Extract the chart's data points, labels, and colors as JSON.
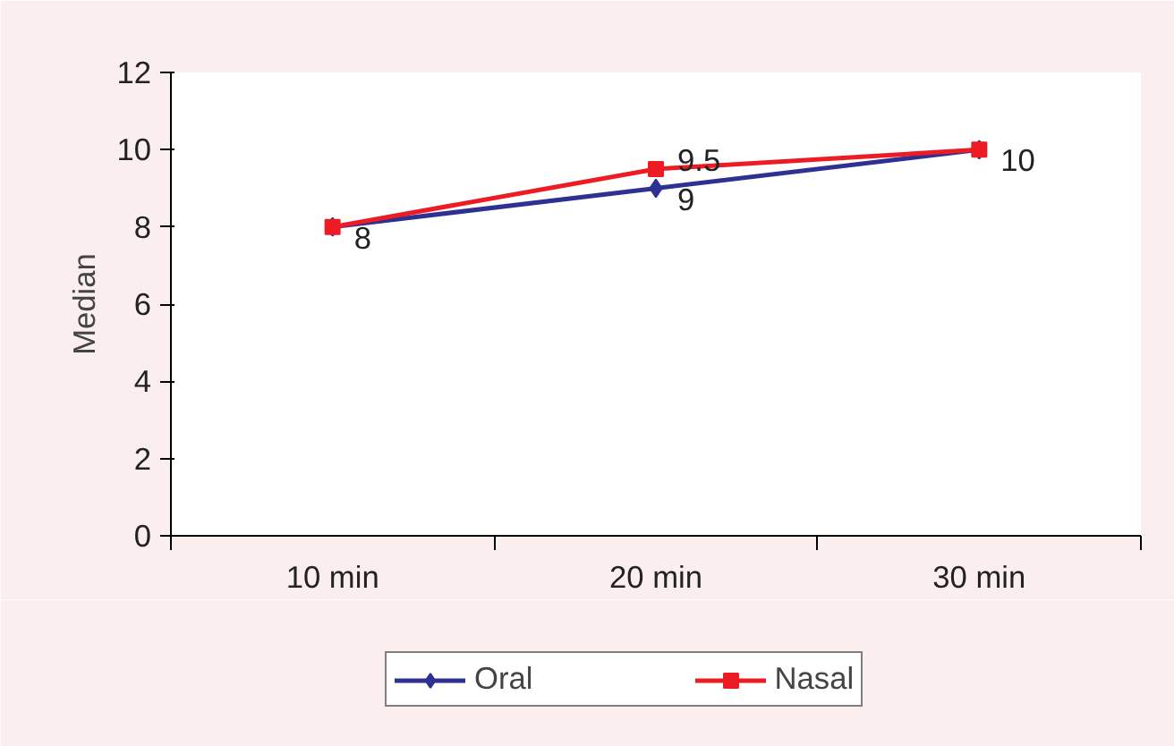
{
  "chart_data": {
    "type": "line",
    "ylabel": "Median",
    "categories": [
      "10 min",
      "20 min",
      "30 min"
    ],
    "series": [
      {
        "name": "Oral",
        "color": "#2e3192",
        "values": [
          8,
          9,
          10
        ],
        "value_labels": [
          "8",
          "9",
          "10"
        ],
        "marker": "diamond"
      },
      {
        "name": "Nasal",
        "color": "#ed1c24",
        "values": [
          8,
          9.5,
          10
        ],
        "value_labels": [
          null,
          "9.5",
          null
        ],
        "marker": "square"
      }
    ],
    "ylim": [
      0,
      12
    ],
    "yticks": [
      0,
      2,
      4,
      6,
      8,
      10,
      12
    ],
    "legend": "bottom",
    "line_style": "solid"
  }
}
